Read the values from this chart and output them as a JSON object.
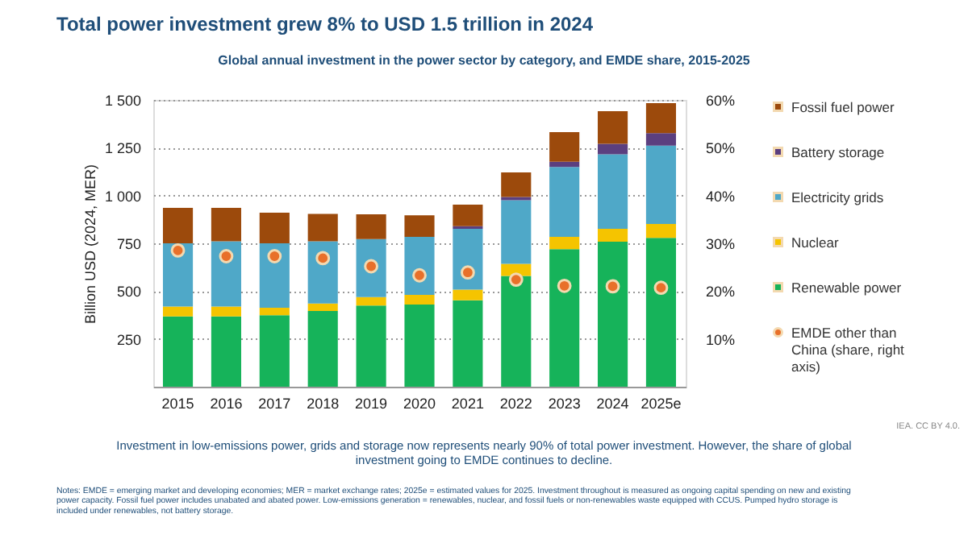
{
  "chart_data": {
    "type": "bar",
    "title": "Total power investment grew 8% to USD 1.5 trillion in 2024",
    "subtitle": "Global annual investment in the power sector by category, and EMDE share, 2015-2025",
    "ylabel": "Billion USD (2024, MER)",
    "categories": [
      "2015",
      "2016",
      "2017",
      "2018",
      "2019",
      "2020",
      "2021",
      "2022",
      "2023",
      "2024",
      "2025e"
    ],
    "stacked": true,
    "series": [
      {
        "name": "Renewable power",
        "color": "#16b35a",
        "values": [
          368,
          368,
          374,
          396,
          424,
          430,
          452,
          579,
          719,
          758,
          778
        ]
      },
      {
        "name": "Nuclear",
        "color": "#f5c400",
        "values": [
          51,
          51,
          39,
          39,
          45,
          50,
          56,
          64,
          65,
          68,
          73
        ]
      },
      {
        "name": "Electricity grids",
        "color": "#4fa8c8",
        "values": [
          331,
          342,
          337,
          326,
          303,
          304,
          318,
          332,
          365,
          390,
          410
        ]
      },
      {
        "name": "Battery storage",
        "color": "#5b3f7f",
        "values": [
          0,
          0,
          0,
          0,
          0,
          0,
          14,
          17,
          28,
          54,
          65
        ]
      },
      {
        "name": "Fossil fuel power",
        "color": "#9c4a0c",
        "values": [
          185,
          174,
          160,
          143,
          130,
          112,
          112,
          129,
          154,
          171,
          157
        ]
      },
      {
        "name": "EMDE other than China (share, right axis)",
        "type": "scatter",
        "axis": "y2",
        "color": "#e8702a",
        "values": [
          28.5,
          27.3,
          27.3,
          26.9,
          25.2,
          23.3,
          23.9,
          22.4,
          21.1,
          21.0,
          20.7
        ]
      }
    ],
    "ylim": [
      0,
      1500
    ],
    "yticks": [
      {
        "value": 250,
        "label": "250"
      },
      {
        "value": 500,
        "label": "500"
      },
      {
        "value": 750,
        "label": "750"
      },
      {
        "value": 1000,
        "label": "1 000"
      },
      {
        "value": 1250,
        "label": "1 250"
      },
      {
        "value": 1500,
        "label": "1 500"
      }
    ],
    "y2lim": [
      0,
      60
    ],
    "y2ticks": [
      {
        "value": 10,
        "label": "10%"
      },
      {
        "value": 20,
        "label": "20%"
      },
      {
        "value": 30,
        "label": "30%"
      },
      {
        "value": 40,
        "label": "40%"
      },
      {
        "value": 50,
        "label": "50%"
      },
      {
        "value": 60,
        "label": "60%"
      }
    ],
    "grid": "y",
    "legend": "right",
    "marker": "circle",
    "annotations": [
      "IEA. CC BY 4.0.",
      "Investment in low-emissions power, grids and storage now represents nearly 90% of total power investment. However, the share of global investment going to EMDE continues to decline.",
      "Notes: EMDE = emerging market and developing economies; MER = market exchange rates; 2025e = estimated values for 2025. Investment throughout is measured as ongoing capital spending on new and existing power capacity. Fossil fuel power includes unabated and abated power. Low-emissions generation = renewables, nuclear, and fossil fuels or non-renewables waste equipped with CCUS. Pumped hydro storage is included under renewables, not battery storage."
    ]
  }
}
